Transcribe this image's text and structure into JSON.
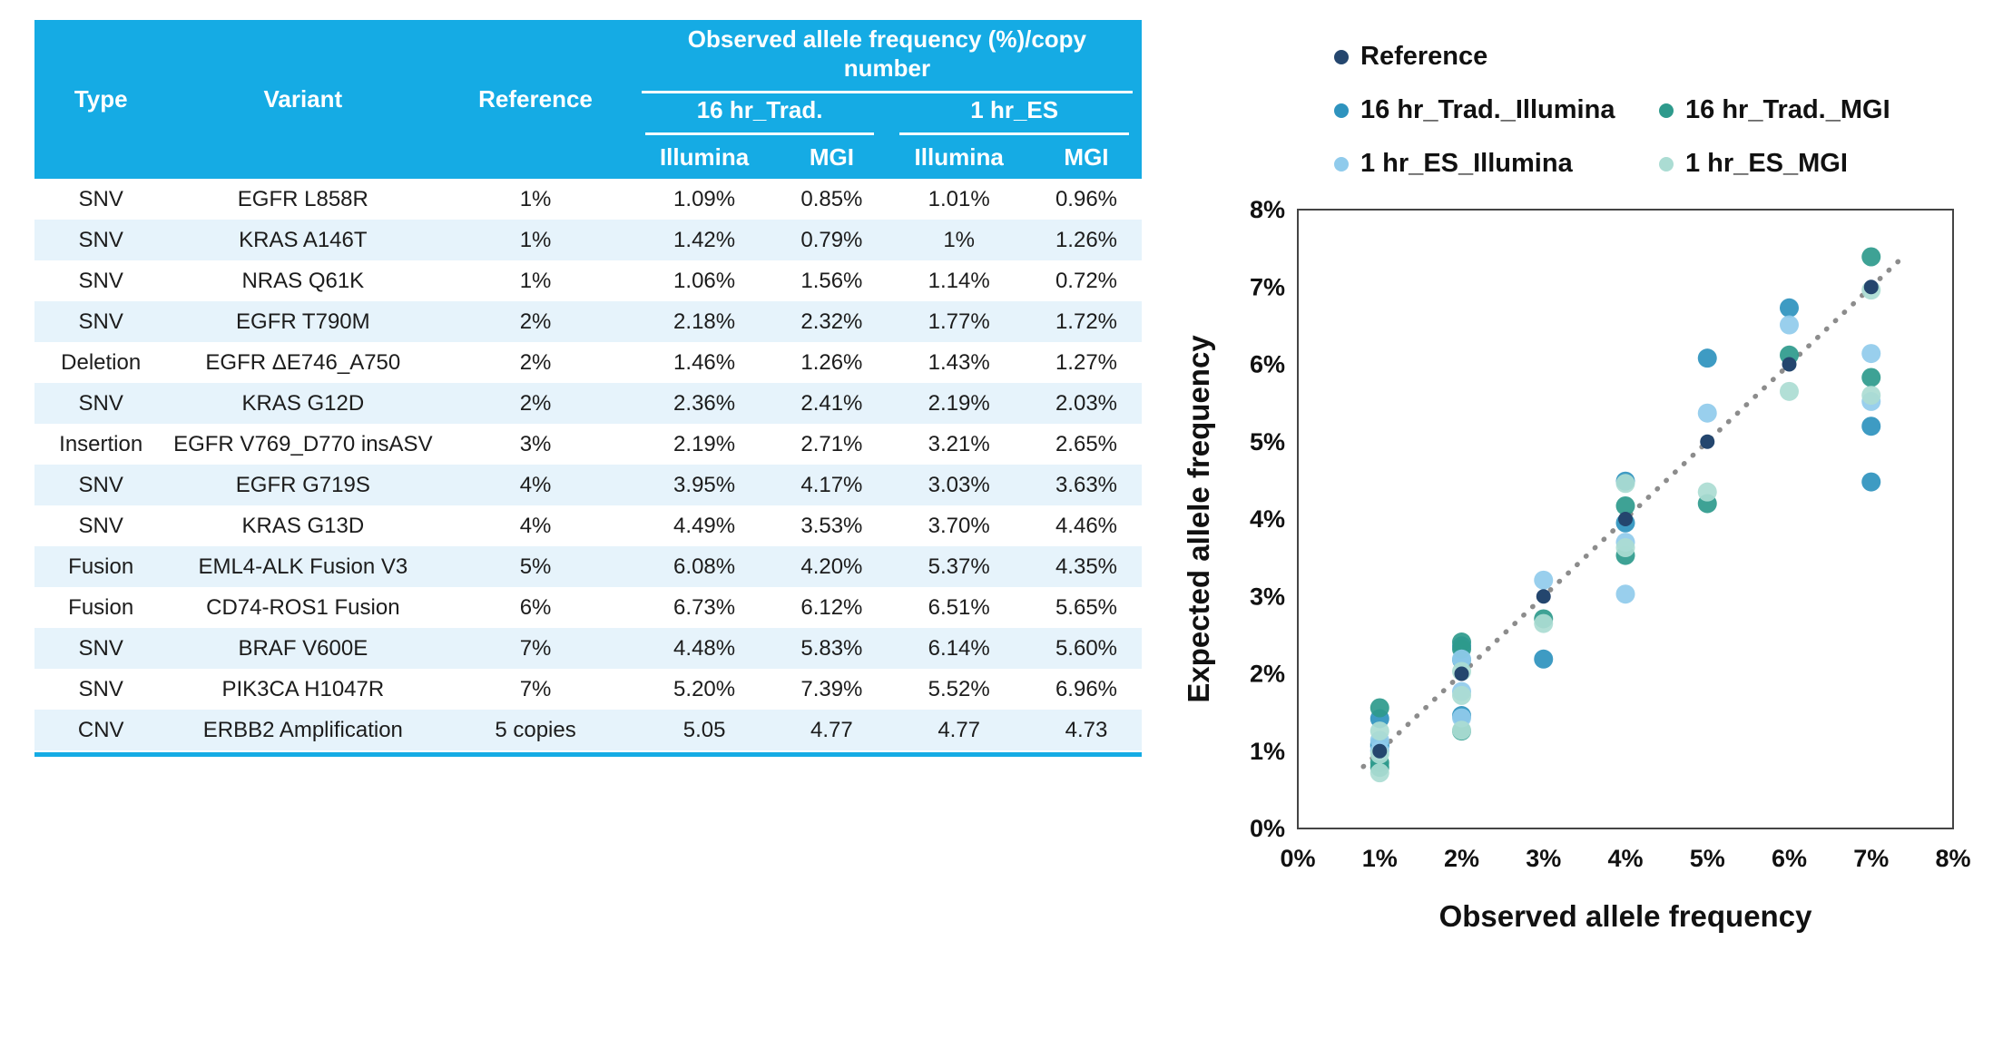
{
  "colors": {
    "accent": "#15ABE4",
    "row_alt": "#E6F3FB",
    "header_text": "#FFFFFF",
    "body_text": "#1C1C1C",
    "diagonal": "#8C8C8C"
  },
  "table": {
    "headers": {
      "type": "Type",
      "variant": "Variant",
      "reference": "Reference",
      "observed_group": "Observed allele frequency (%)/copy number",
      "group1": "16 hr_Trad.",
      "group2": "1 hr_ES",
      "sub": [
        "Illumina",
        "MGI",
        "Illumina",
        "MGI"
      ]
    },
    "rows": [
      [
        "SNV",
        "EGFR L858R",
        "1%",
        "1.09%",
        "0.85%",
        "1.01%",
        "0.96%"
      ],
      [
        "SNV",
        "KRAS A146T",
        "1%",
        "1.42%",
        "0.79%",
        "1%",
        "1.26%"
      ],
      [
        "SNV",
        "NRAS Q61K",
        "1%",
        "1.06%",
        "1.56%",
        "1.14%",
        "0.72%"
      ],
      [
        "SNV",
        "EGFR T790M",
        "2%",
        "2.18%",
        "2.32%",
        "1.77%",
        "1.72%"
      ],
      [
        "Deletion",
        "EGFR ΔE746_A750",
        "2%",
        "1.46%",
        "1.26%",
        "1.43%",
        "1.27%"
      ],
      [
        "SNV",
        "KRAS G12D",
        "2%",
        "2.36%",
        "2.41%",
        "2.19%",
        "2.03%"
      ],
      [
        "Insertion",
        "EGFR V769_D770 insASV",
        "3%",
        "2.19%",
        "2.71%",
        "3.21%",
        "2.65%"
      ],
      [
        "SNV",
        "EGFR G719S",
        "4%",
        "3.95%",
        "4.17%",
        "3.03%",
        "3.63%"
      ],
      [
        "SNV",
        "KRAS G13D",
        "4%",
        "4.49%",
        "3.53%",
        "3.70%",
        "4.46%"
      ],
      [
        "Fusion",
        "EML4-ALK Fusion V3",
        "5%",
        "6.08%",
        "4.20%",
        "5.37%",
        "4.35%"
      ],
      [
        "Fusion",
        "CD74-ROS1 Fusion",
        "6%",
        "6.73%",
        "6.12%",
        "6.51%",
        "5.65%"
      ],
      [
        "SNV",
        "BRAF V600E",
        "7%",
        "4.48%",
        "5.83%",
        "6.14%",
        "5.60%"
      ],
      [
        "SNV",
        "PIK3CA H1047R",
        "7%",
        "5.20%",
        "7.39%",
        "5.52%",
        "6.96%"
      ],
      [
        "CNV",
        "ERBB2 Amplification",
        "5 copies",
        "5.05",
        "4.77",
        "4.77",
        "4.73"
      ]
    ]
  },
  "chart_data": {
    "type": "scatter",
    "xlabel": "Observed allele frequency",
    "ylabel": "Expected allele frequency",
    "xlim": [
      0,
      8
    ],
    "ylim": [
      0,
      8
    ],
    "x_ticks": [
      "0%",
      "1%",
      "2%",
      "3%",
      "4%",
      "5%",
      "6%",
      "7%",
      "8%"
    ],
    "y_ticks": [
      "0%",
      "1%",
      "2%",
      "3%",
      "4%",
      "5%",
      "6%",
      "7%",
      "8%"
    ],
    "grid": false,
    "legend_position": "top",
    "diagonal": {
      "from": 0.8,
      "to": 7.35,
      "style": "dotted",
      "color": "#8C8C8C"
    },
    "series": [
      {
        "name": "Reference",
        "color": "#24466E",
        "points": [
          [
            1,
            1
          ],
          [
            2,
            2
          ],
          [
            3,
            3
          ],
          [
            4,
            4
          ],
          [
            5,
            5
          ],
          [
            6,
            6
          ],
          [
            7,
            7
          ]
        ]
      },
      {
        "name": "16 hr_Trad._Illumina",
        "color": "#2E93BE",
        "points": [
          [
            1,
            1.09
          ],
          [
            1,
            1.42
          ],
          [
            1,
            1.06
          ],
          [
            2,
            2.18
          ],
          [
            2,
            1.46
          ],
          [
            2,
            2.36
          ],
          [
            3,
            2.19
          ],
          [
            4,
            3.95
          ],
          [
            4,
            4.49
          ],
          [
            5,
            6.08
          ],
          [
            6,
            6.73
          ],
          [
            7,
            4.48
          ],
          [
            7,
            5.2
          ]
        ]
      },
      {
        "name": "16 hr_Trad._MGI",
        "color": "#2E9A8C",
        "points": [
          [
            1,
            0.85
          ],
          [
            1,
            0.79
          ],
          [
            1,
            1.56
          ],
          [
            2,
            2.32
          ],
          [
            2,
            1.26
          ],
          [
            2,
            2.41
          ],
          [
            3,
            2.71
          ],
          [
            4,
            4.17
          ],
          [
            4,
            3.53
          ],
          [
            5,
            4.2
          ],
          [
            6,
            6.12
          ],
          [
            7,
            5.83
          ],
          [
            7,
            7.39
          ]
        ]
      },
      {
        "name": "1 hr_ES_Illumina",
        "color": "#90CBEC",
        "points": [
          [
            1,
            1.01
          ],
          [
            1,
            1.0
          ],
          [
            1,
            1.14
          ],
          [
            2,
            1.77
          ],
          [
            2,
            1.43
          ],
          [
            2,
            2.19
          ],
          [
            3,
            3.21
          ],
          [
            4,
            3.03
          ],
          [
            4,
            3.7
          ],
          [
            5,
            5.37
          ],
          [
            6,
            6.51
          ],
          [
            7,
            6.14
          ],
          [
            7,
            5.52
          ]
        ]
      },
      {
        "name": "1 hr_ES_MGI",
        "color": "#ABDCD3",
        "points": [
          [
            1,
            0.96
          ],
          [
            1,
            1.26
          ],
          [
            1,
            0.72
          ],
          [
            2,
            1.72
          ],
          [
            2,
            1.27
          ],
          [
            2,
            2.03
          ],
          [
            3,
            2.65
          ],
          [
            4,
            3.63
          ],
          [
            4,
            4.46
          ],
          [
            5,
            4.35
          ],
          [
            6,
            5.65
          ],
          [
            7,
            5.6
          ],
          [
            7,
            6.96
          ]
        ]
      }
    ]
  }
}
